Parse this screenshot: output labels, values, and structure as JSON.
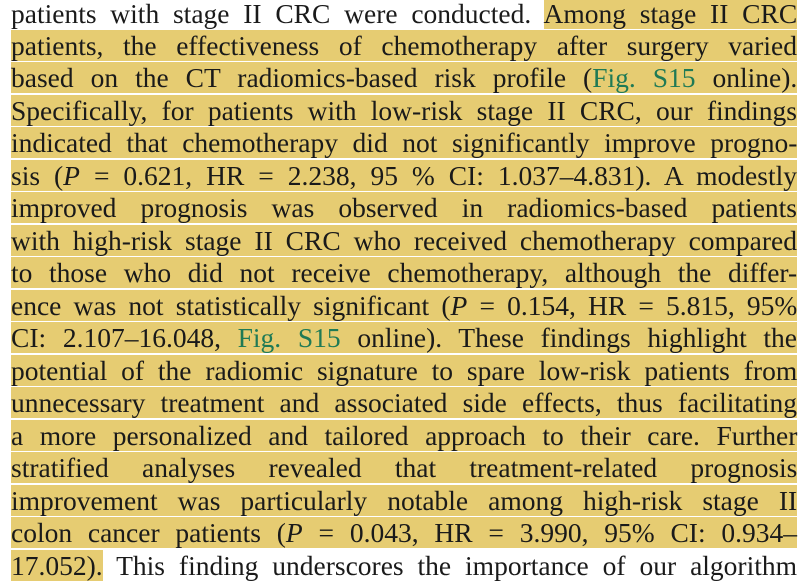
{
  "lines": [
    {
      "pre": "patients with stage II CRC were conducted. ",
      "hl": "Among stage II CRC"
    },
    {
      "hl": "patients, the effectiveness of chemotherapy after surgery varied"
    },
    {
      "hl_a": "based on the CT radiomics-based risk profile (",
      "ref": "Fig. S15",
      "hl_b": " online)."
    },
    {
      "hl": "Specifically, for patients with low-risk stage II CRC, our findings"
    },
    {
      "hl": "indicated that chemotherapy did not significantly improve progno-"
    },
    {
      "hl_a": "sis (",
      "it": "P",
      "hl_b": " = 0.621, HR = 2.238, 95 % CI: 1.037–4.831). A modestly"
    },
    {
      "hl": "improved prognosis was observed in radiomics-based patients"
    },
    {
      "hl": "with high-risk stage II CRC who received chemotherapy compared"
    },
    {
      "hl": "to those who did not receive chemotherapy, although the differ-"
    },
    {
      "hl_a": "ence was not statistically significant (",
      "it": "P",
      "hl_b": " = 0.154, HR = 5.815, 95%"
    },
    {
      "hl_a": "CI: 2.107–16.048, ",
      "ref": "Fig. S15",
      "hl_b": " online). These findings highlight the"
    },
    {
      "hl": "potential of the radiomic signature to spare low-risk patients from"
    },
    {
      "hl": "unnecessary treatment and associated side effects, thus facilitating"
    },
    {
      "hl": "a more personalized and tailored approach to their care. Further"
    },
    {
      "hl": "stratified analyses revealed that treatment-related prognosis"
    },
    {
      "hl": "improvement was particularly notable among high-risk stage II"
    },
    {
      "hl_a": "colon cancer patients (",
      "it": "P",
      "hl_b": " = 0.043, HR = 3.990, 95% CI: 0.934–"
    },
    {
      "hl": "17.052).",
      "post": " This finding underscores the importance of our algorithm"
    }
  ]
}
